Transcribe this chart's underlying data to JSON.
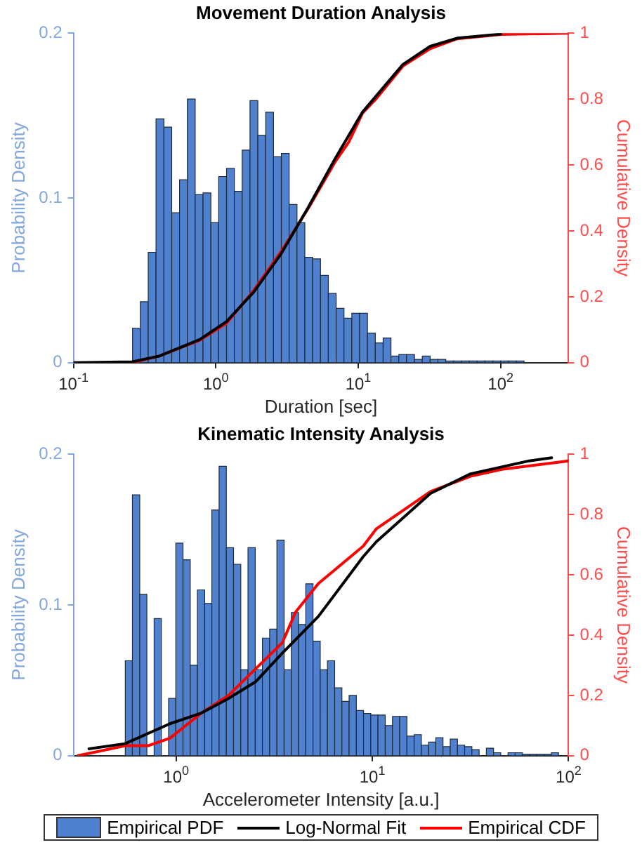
{
  "chart_data": [
    {
      "type": "histogram",
      "title": "Movement Duration Analysis",
      "xlabel": "Duration [sec]",
      "ylabel": "Probability Density",
      "y2label": "Cumulative Density",
      "log": "x",
      "xlim": [
        0.1,
        300
      ],
      "xticks": [
        {
          "value": 0.1,
          "label": "10$^{-1}$"
        },
        {
          "value": 1,
          "label": "10$^{0}$"
        },
        {
          "value": 10,
          "label": "10$^{1}$"
        },
        {
          "value": 100,
          "label": "10$^{2}$"
        }
      ],
      "ylim": [
        0,
        0.2
      ],
      "yticks": [
        0,
        0.1,
        0.2
      ],
      "y2lim": [
        0,
        1
      ],
      "y2ticks": [
        0,
        0.2,
        0.4,
        0.6,
        0.8,
        1
      ],
      "series": [
        {
          "type": "histogram",
          "color": "#4f81cf",
          "bins": [
            0.26,
            0.295,
            0.335,
            0.38,
            0.432,
            0.49,
            0.556,
            0.631,
            0.716,
            0.813,
            0.923,
            1.047,
            1.189,
            1.349,
            1.531,
            1.738,
            1.972,
            2.239,
            2.541,
            2.884,
            3.273,
            3.715,
            4.217,
            4.786,
            5.433,
            6.166,
            6.998,
            7.943,
            9.016,
            10.23,
            11.61,
            13.18,
            14.96,
            16.98,
            19.28,
            21.88,
            24.83,
            28.18,
            31.99,
            36.31,
            41.21,
            46.77,
            53.09,
            60.26,
            68.39,
            77.62,
            88.1,
            100,
            113.5,
            128.8,
            146.2
          ],
          "values": [
            0.021,
            0.037,
            0.067,
            0.148,
            0.143,
            0.091,
            0.111,
            0.16,
            0.102,
            0.103,
            0.085,
            0.113,
            0.118,
            0.104,
            0.129,
            0.159,
            0.138,
            0.152,
            0.125,
            0.127,
            0.096,
            0.085,
            0.064,
            0.063,
            0.053,
            0.042,
            0.033,
            0.027,
            0.03,
            0.03,
            0.018,
            0.012,
            0.015,
            0.004,
            0.005,
            0.005,
            0.002,
            0.004,
            0.002,
            0.002,
            0.001,
            0.001,
            0.001,
            0.001,
            0.001,
            0.001,
            0.001,
            0.001,
            0.001,
            0.001
          ]
        },
        {
          "type": "line",
          "axis": "y2",
          "color": "#000000",
          "x": [
            0.1,
            0.26,
            0.4,
            0.77,
            1.19,
            1.85,
            2.87,
            4.44,
            6.9,
            10.7,
            20.6,
            32,
            50,
            100
          ],
          "values": [
            0,
            0.003,
            0.02,
            0.07,
            0.125,
            0.215,
            0.33,
            0.47,
            0.62,
            0.76,
            0.905,
            0.96,
            0.985,
            0.997
          ]
        },
        {
          "type": "line",
          "axis": "y2",
          "color": "#ff0000",
          "x": [
            0.257,
            0.4,
            0.77,
            1.19,
            1.85,
            2.87,
            4.44,
            6.9,
            8.6,
            10.7,
            13.3,
            20.6,
            32,
            49.6,
            102,
            300
          ],
          "values": [
            0,
            0.02,
            0.068,
            0.12,
            0.22,
            0.337,
            0.467,
            0.61,
            0.67,
            0.757,
            0.8,
            0.9,
            0.953,
            0.983,
            0.996,
            1
          ]
        }
      ]
    },
    {
      "type": "histogram",
      "title": "Kinematic Intensity Analysis",
      "xlabel": "Accelerometer Intensity [a.u.]",
      "ylabel": "Probability Density",
      "y2label": "Cumulative Density",
      "log": "x",
      "legend": "bottom",
      "xlim": [
        0.31,
        100
      ],
      "xticks": [
        {
          "value": 1,
          "label": "10$^{0}$"
        },
        {
          "value": 10,
          "label": "10$^{1}$"
        },
        {
          "value": 100,
          "label": "10$^{2}$"
        }
      ],
      "ylim": [
        0,
        0.2
      ],
      "yticks": [
        0,
        0.1,
        0.2
      ],
      "y2lim": [
        0,
        1
      ],
      "y2ticks": [
        0,
        0.2,
        0.4,
        0.6,
        0.8,
        1
      ],
      "series": [
        {
          "type": "histogram",
          "name": "Empirical PDF",
          "color": "#4f81cf",
          "bins": [
            0.551,
            0.599,
            0.653,
            0.71,
            0.773,
            0.841,
            0.916,
            0.997,
            1.085,
            1.181,
            1.285,
            1.399,
            1.522,
            1.657,
            1.804,
            1.963,
            2.137,
            2.326,
            2.532,
            2.755,
            2.999,
            3.265,
            3.553,
            3.868,
            4.21,
            4.581,
            4.987,
            5.428,
            5.908,
            6.43,
            6.998,
            7.618,
            8.291,
            9.025,
            9.822,
            10.69,
            11.64,
            12.67,
            13.79,
            15.01,
            16.33,
            17.78,
            19.35,
            21.06,
            22.92,
            24.95,
            27.16,
            29.56,
            32.17,
            35.02,
            38.11,
            41.48,
            45.15,
            49.14,
            53.49,
            58.21,
            63.36,
            68.97,
            75.06,
            81.7,
            88.92
          ],
          "values": [
            0.063,
            0.173,
            0.107,
            0,
            0.091,
            0,
            0.038,
            0.141,
            0.13,
            0.06,
            0.11,
            0.101,
            0.163,
            0.192,
            0.138,
            0.127,
            0.057,
            0.138,
            0.057,
            0.078,
            0.084,
            0.143,
            0.057,
            0.095,
            0.087,
            0.114,
            0.076,
            0.057,
            0.063,
            0.045,
            0.036,
            0.04,
            0.03,
            0.028,
            0.027,
            0.027,
            0.02,
            0.026,
            0.026,
            0.013,
            0.014,
            0.007,
            0.009,
            0.012,
            0.006,
            0.011,
            0.007,
            0.006,
            0.004,
            0,
            0.005,
            0.002,
            0,
            0.002,
            0.002,
            0.001,
            0.001,
            0.001,
            0.001,
            0.002
          ]
        },
        {
          "type": "line",
          "axis": "y2",
          "name": "Log-Normal Fit",
          "color": "#000000",
          "x": [
            0.36,
            0.55,
            0.93,
            1.35,
            1.85,
            2.54,
            3.48,
            5.31,
            8.98,
            10.5,
            19.8,
            31.7,
            63,
            82
          ],
          "values": [
            0.023,
            0.04,
            0.106,
            0.142,
            0.19,
            0.245,
            0.34,
            0.462,
            0.66,
            0.71,
            0.87,
            0.935,
            0.978,
            0.988
          ]
        },
        {
          "type": "line",
          "axis": "y2",
          "name": "Empirical CDF",
          "color": "#ff0000",
          "x": [
            0.316,
            0.551,
            0.72,
            0.93,
            1.35,
            1.85,
            2.54,
            3.48,
            4.07,
            5.31,
            8.98,
            10.5,
            19.8,
            31.7,
            45.7,
            100
          ],
          "values": [
            0,
            0.033,
            0.033,
            0.058,
            0.142,
            0.2,
            0.288,
            0.375,
            0.477,
            0.571,
            0.695,
            0.753,
            0.876,
            0.927,
            0.95,
            0.978
          ]
        }
      ]
    }
  ]
}
